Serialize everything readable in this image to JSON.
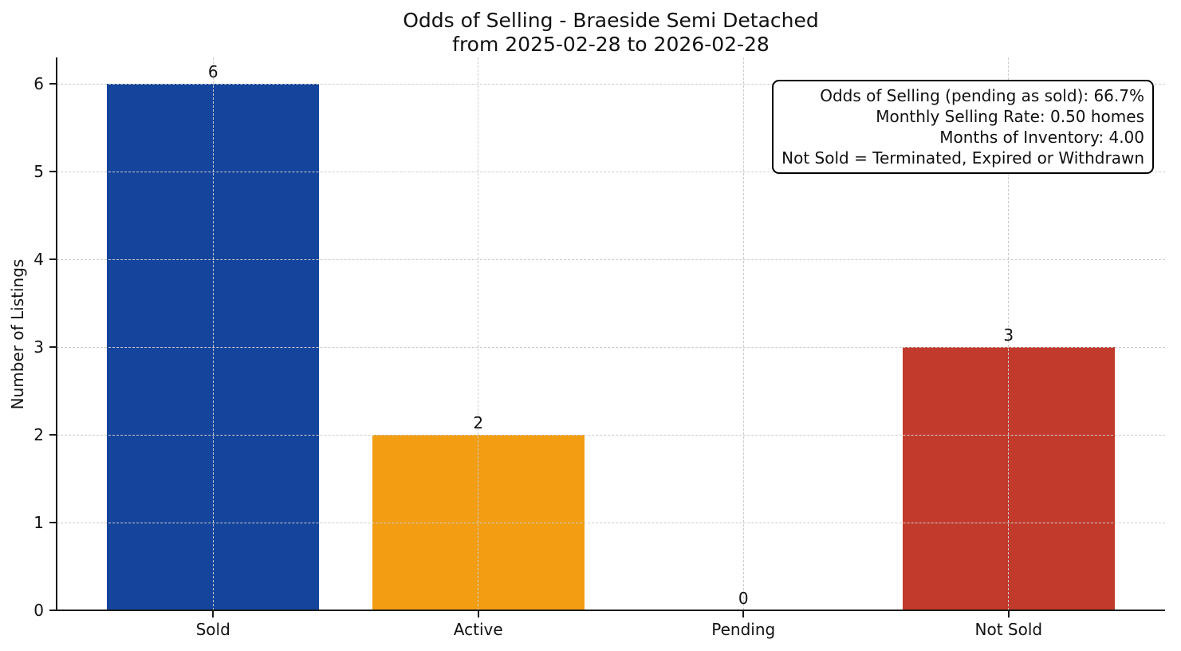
{
  "chart_data": {
    "type": "bar",
    "title": "Odds of Selling - Braeside Semi Detached\nfrom 2025-02-28 to 2026-02-28",
    "title_line1": "Odds of Selling - Braeside Semi Detached",
    "title_line2": "from 2025-02-28 to 2026-02-28",
    "xlabel": "",
    "ylabel": "Number of Listings",
    "categories": [
      "Sold",
      "Active",
      "Pending",
      "Not Sold"
    ],
    "values": [
      6,
      2,
      0,
      3
    ],
    "value_labels": [
      "6",
      "2",
      "0",
      "3"
    ],
    "bar_colors": [
      "#14449c",
      "#f29d12",
      null,
      "#c23a2b"
    ],
    "yticks": [
      0,
      1,
      2,
      3,
      4,
      5,
      6
    ],
    "ylim": [
      0,
      6.3
    ],
    "grid": {
      "style": "dashed",
      "axes": "both",
      "color": "#cccccc"
    },
    "legend": "none",
    "annotation_box": {
      "position": "top-right",
      "lines": [
        "Odds of Selling (pending as sold): 66.7%",
        "Monthly Selling Rate: 0.50 homes",
        "Months of Inventory: 4.00",
        "Not Sold = Terminated, Expired or Withdrawn"
      ]
    }
  }
}
